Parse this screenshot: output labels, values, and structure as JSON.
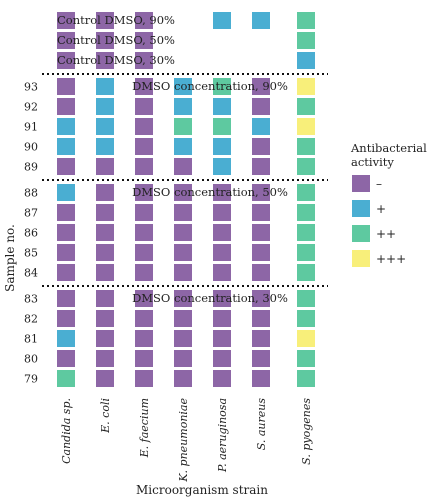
{
  "chart_data": {
    "type": "heatmap",
    "xlabel": "Microorganism strain",
    "ylabel": "Sample no.",
    "strains": [
      "Candida sp.",
      "E. coli",
      "E. faecium",
      "K. pneumoniae",
      "P. aeruginosa",
      "S. aureus",
      "S. pyogenes"
    ],
    "sections": [
      {
        "label": "",
        "rows": [
          {
            "label": "Control DMSO, 90%",
            "values": [
              0,
              0,
              0,
              null,
              1,
              1,
              2
            ]
          },
          {
            "label": "Control DMSO, 50%",
            "values": [
              0,
              0,
              0,
              null,
              null,
              null,
              2
            ]
          },
          {
            "label": "Control DMSO, 30%",
            "values": [
              0,
              0,
              0,
              null,
              null,
              null,
              1
            ]
          }
        ]
      },
      {
        "label": "DMSO concentration, 90%",
        "rows": [
          {
            "label": "93",
            "values": [
              0,
              1,
              0,
              1,
              2,
              0,
              3
            ]
          },
          {
            "label": "92",
            "values": [
              0,
              1,
              0,
              1,
              1,
              0,
              2
            ]
          },
          {
            "label": "91",
            "values": [
              1,
              1,
              0,
              2,
              2,
              1,
              3
            ]
          },
          {
            "label": "90",
            "values": [
              1,
              1,
              0,
              1,
              1,
              0,
              2
            ]
          },
          {
            "label": "89",
            "values": [
              0,
              0,
              0,
              0,
              1,
              0,
              2
            ]
          }
        ]
      },
      {
        "label": "DMSO concentration, 50%",
        "rows": [
          {
            "label": "88",
            "values": [
              1,
              0,
              0,
              0,
              0,
              0,
              2
            ]
          },
          {
            "label": "87",
            "values": [
              0,
              0,
              0,
              0,
              0,
              0,
              2
            ]
          },
          {
            "label": "86",
            "values": [
              0,
              0,
              0,
              0,
              0,
              0,
              2
            ]
          },
          {
            "label": "85",
            "values": [
              0,
              0,
              0,
              0,
              0,
              0,
              2
            ]
          },
          {
            "label": "84",
            "values": [
              0,
              0,
              0,
              0,
              0,
              0,
              2
            ]
          }
        ]
      },
      {
        "label": "DMSO concentration, 30%",
        "rows": [
          {
            "label": "83",
            "values": [
              0,
              0,
              0,
              0,
              0,
              0,
              2
            ]
          },
          {
            "label": "82",
            "values": [
              0,
              0,
              0,
              0,
              0,
              0,
              2
            ]
          },
          {
            "label": "81",
            "values": [
              1,
              0,
              0,
              0,
              0,
              0,
              3
            ]
          },
          {
            "label": "80",
            "values": [
              0,
              0,
              0,
              0,
              0,
              0,
              2
            ]
          },
          {
            "label": "79",
            "values": [
              2,
              0,
              0,
              0,
              0,
              0,
              2
            ]
          }
        ]
      }
    ],
    "legend": {
      "title_lines": [
        "Antibacterial",
        "activity"
      ],
      "placement": "right",
      "items": [
        {
          "label": "–",
          "color": "#8d66a6"
        },
        {
          "label": "+",
          "color": "#4aaed2"
        },
        {
          "label": "++",
          "color": "#5ec9a0"
        },
        {
          "label": "+++",
          "color": "#f8ef7a"
        }
      ]
    }
  }
}
